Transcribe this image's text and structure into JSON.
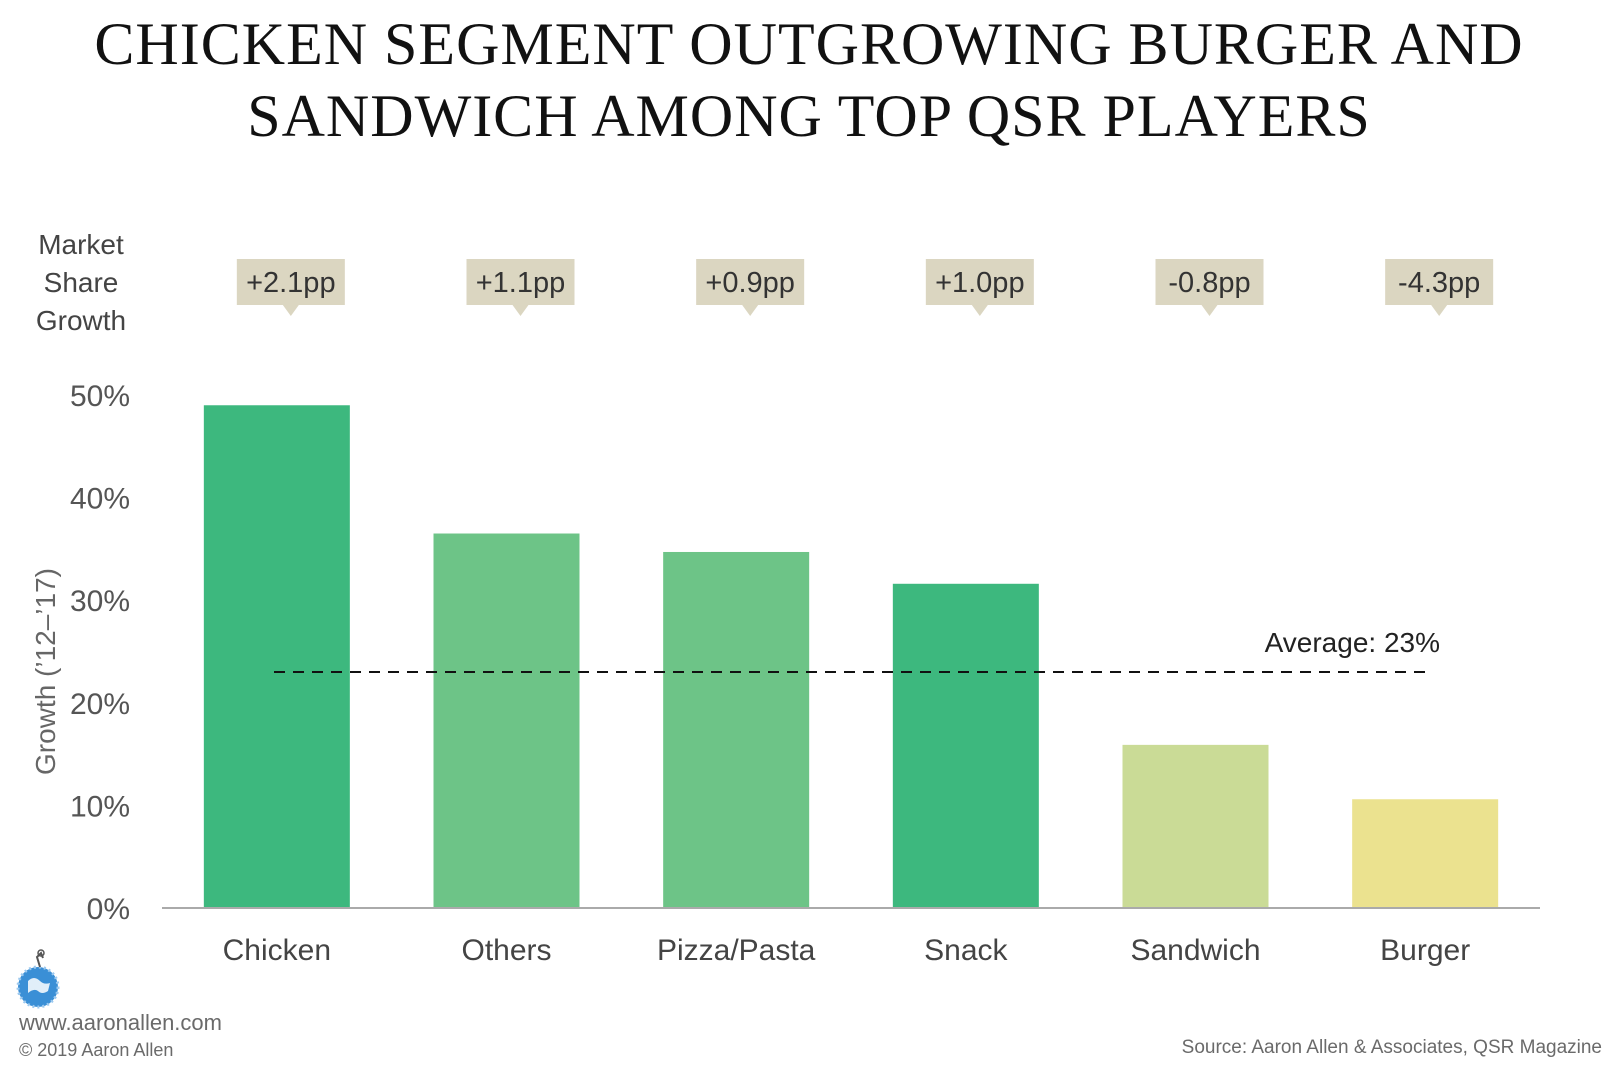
{
  "title_lines": [
    "CHICKEN SEGMENT OUTGROWING BURGER AND",
    "SANDWICH AMONG TOP QSR PLAYERS"
  ],
  "colors": {
    "dark_green": "#3db87e",
    "light_green": "#6dc487",
    "sage": "#cadb96",
    "pale_yellow": "#ebe28f",
    "callout": "#dbd6c1",
    "axis": "#aaaaaa"
  },
  "chart_data": {
    "type": "bar",
    "categories": [
      "Chicken",
      "Others",
      "Pizza/Pasta",
      "Snack",
      "Sandwich",
      "Burger"
    ],
    "values": [
      49,
      36.5,
      34.7,
      31.6,
      15.9,
      10.6
    ],
    "bar_colors": [
      "#3db87e",
      "#6dc487",
      "#6dc487",
      "#3db87e",
      "#cadb96",
      "#ebe28f"
    ],
    "ylabel": "Growth (’12–’17)",
    "ylim": [
      0,
      50
    ],
    "yticks": [
      0,
      10,
      20,
      30,
      40,
      50
    ],
    "ytick_labels": [
      "0%",
      "10%",
      "20%",
      "30%",
      "40%",
      "50%"
    ],
    "market_share_label_lines": [
      "Market",
      "Share",
      "Growth"
    ],
    "market_share_growth": [
      "+2.1pp",
      "+1.1pp",
      "+0.9pp",
      "+1.0pp",
      "-0.8pp",
      "-4.3pp"
    ],
    "average": {
      "value": 23,
      "label": "Average: 23%"
    },
    "grid": false,
    "legend": "none"
  },
  "footer": {
    "url": "www.aaronallen.com",
    "copyright": "© 2019 Aaron Allen",
    "source": "Source: Aaron Allen & Associates, QSR Magazine"
  },
  "logo_icon": "globe-icon"
}
